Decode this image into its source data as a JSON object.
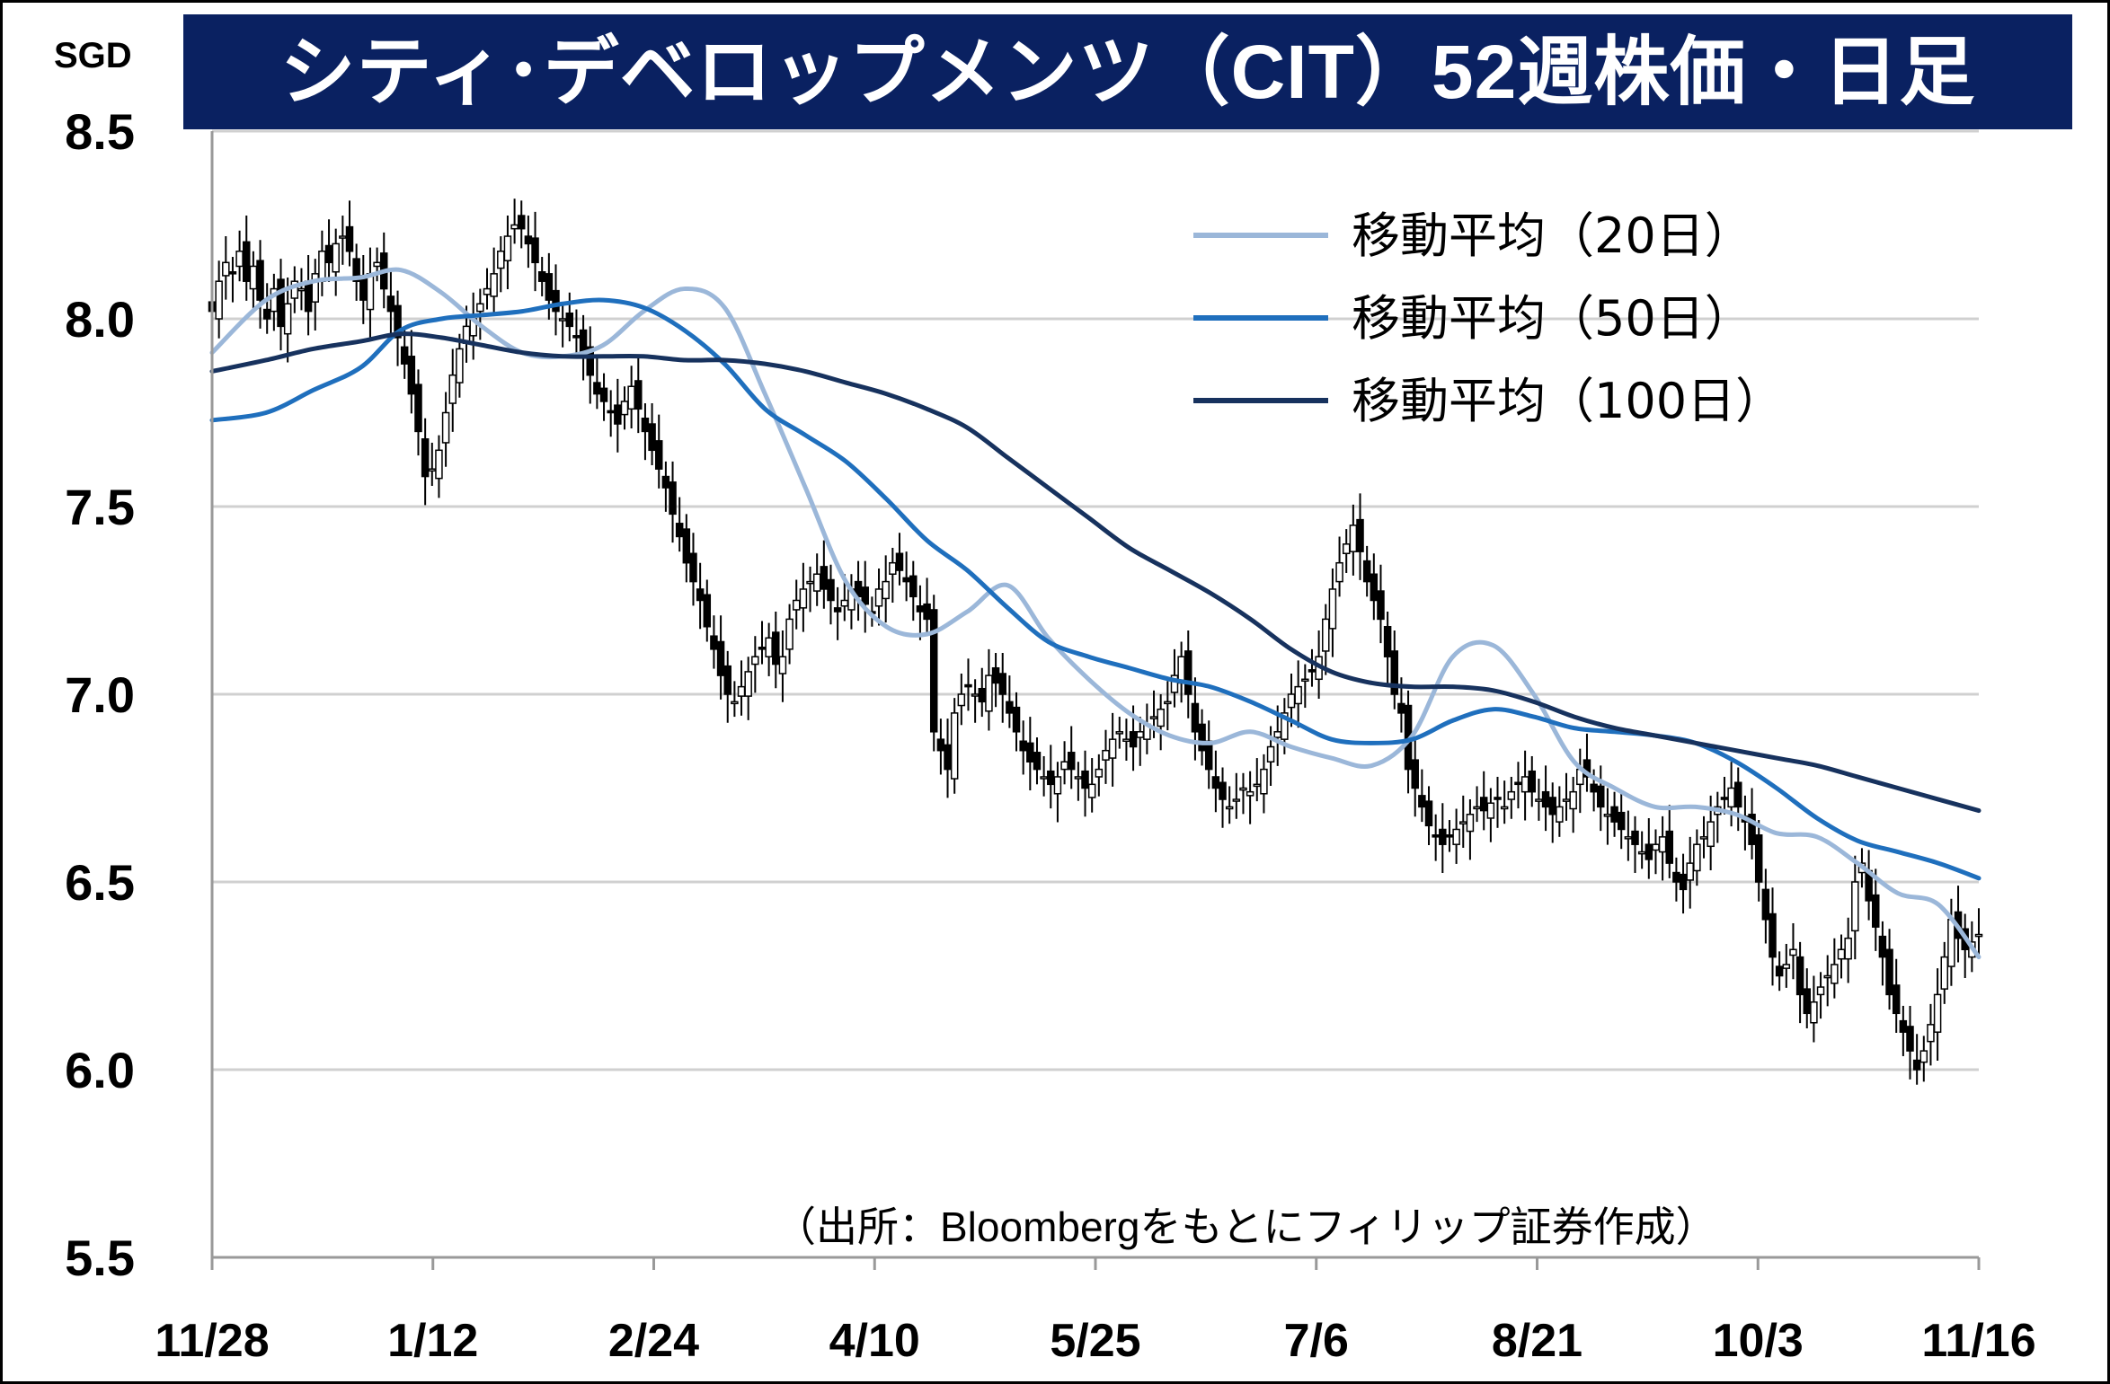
{
  "title": "シティ･デベロップメンツ（CIT）52週株価・日足",
  "unit_label": "SGD",
  "source_note": "（出所：Bloombergをもとにフィリップ証券作成）",
  "colors": {
    "title_bg": "#0a2161",
    "ma20": "#9bb7d9",
    "ma50": "#1f6fbd",
    "ma100": "#17325e",
    "grid": "#d0d0d0",
    "candle": "#000000"
  },
  "chart_data": {
    "type": "line",
    "ylim": [
      5.5,
      8.5
    ],
    "yticks": [
      "8.5",
      "8.0",
      "7.5",
      "7.0",
      "6.5",
      "6.0",
      "5.5"
    ],
    "ytick_values": [
      8.5,
      8.0,
      7.5,
      7.0,
      6.5,
      6.0,
      5.5
    ],
    "xticks": [
      "11/28",
      "1/12",
      "2/24",
      "4/10",
      "5/25",
      "7/6",
      "8/21",
      "10/3",
      "11/16"
    ],
    "grid": true,
    "legend_position": "top-right",
    "series": [
      {
        "name": "移動平均（20日）",
        "color": "#9bb7d9",
        "x": [
          0,
          8,
          15,
          22,
          28,
          34,
          40,
          46,
          52,
          58,
          64,
          70,
          76,
          82,
          88,
          94,
          100,
          106,
          112,
          118,
          124,
          130,
          136,
          142,
          148,
          154,
          160,
          166,
          172,
          178,
          184,
          190,
          196,
          202,
          208,
          214,
          220,
          226,
          232,
          238,
          244,
          250,
          256,
          262
        ],
        "values": [
          7.91,
          8.05,
          8.1,
          8.11,
          8.13,
          8.07,
          7.98,
          7.91,
          7.9,
          7.93,
          8.02,
          8.08,
          8.03,
          7.8,
          7.55,
          7.3,
          7.18,
          7.16,
          7.22,
          7.29,
          7.15,
          7.04,
          6.95,
          6.89,
          6.87,
          6.9,
          6.86,
          6.83,
          6.81,
          6.89,
          7.1,
          7.13,
          7.0,
          6.82,
          6.75,
          6.7,
          6.7,
          6.68,
          6.63,
          6.62,
          6.55,
          6.47,
          6.44,
          6.3
        ]
      },
      {
        "name": "移動平均（50日）",
        "color": "#1f6fbd",
        "x": [
          0,
          8,
          15,
          22,
          28,
          34,
          40,
          46,
          52,
          58,
          64,
          70,
          76,
          82,
          88,
          94,
          100,
          106,
          112,
          118,
          124,
          130,
          136,
          142,
          148,
          154,
          160,
          166,
          172,
          178,
          184,
          190,
          196,
          202,
          208,
          214,
          220,
          226,
          232,
          238,
          244,
          250,
          256,
          262
        ],
        "values": [
          7.73,
          7.75,
          7.81,
          7.87,
          7.97,
          8.0,
          8.01,
          8.02,
          8.04,
          8.05,
          8.03,
          7.97,
          7.88,
          7.76,
          7.69,
          7.62,
          7.52,
          7.41,
          7.33,
          7.23,
          7.14,
          7.1,
          7.07,
          7.04,
          7.02,
          6.98,
          6.93,
          6.88,
          6.87,
          6.88,
          6.93,
          6.96,
          6.94,
          6.91,
          6.9,
          6.89,
          6.87,
          6.82,
          6.75,
          6.67,
          6.61,
          6.58,
          6.55,
          6.51
        ]
      },
      {
        "name": "移動平均（100日）",
        "color": "#17325e",
        "x": [
          0,
          8,
          15,
          22,
          28,
          34,
          40,
          46,
          52,
          58,
          64,
          70,
          76,
          82,
          88,
          94,
          100,
          106,
          112,
          118,
          124,
          130,
          136,
          142,
          148,
          154,
          160,
          166,
          172,
          178,
          184,
          190,
          196,
          202,
          208,
          214,
          220,
          226,
          232,
          238,
          244,
          250,
          256,
          262
        ],
        "values": [
          7.86,
          7.89,
          7.92,
          7.94,
          7.96,
          7.95,
          7.93,
          7.91,
          7.9,
          7.9,
          7.9,
          7.89,
          7.89,
          7.88,
          7.86,
          7.83,
          7.8,
          7.76,
          7.71,
          7.63,
          7.55,
          7.47,
          7.39,
          7.33,
          7.27,
          7.2,
          7.12,
          7.06,
          7.03,
          7.02,
          7.02,
          7.01,
          6.98,
          6.94,
          6.91,
          6.89,
          6.87,
          6.85,
          6.83,
          6.81,
          6.78,
          6.75,
          6.72,
          6.69
        ]
      }
    ],
    "candles": {
      "note": "daily OHLC, index 0..262",
      "close": [
        8.02,
        8.1,
        8.15,
        8.12,
        8.18,
        8.1,
        8.14,
        8.05,
        8.0,
        8.08,
        7.98,
        8.04,
        8.1,
        8.08,
        8.02,
        8.12,
        8.18,
        8.15,
        8.2,
        8.22,
        8.18,
        8.1,
        8.05,
        8.12,
        8.15,
        8.08,
        8.02,
        7.95,
        7.88,
        7.8,
        7.7,
        7.58,
        7.6,
        7.65,
        7.75,
        7.85,
        7.92,
        7.98,
        8.0,
        8.04,
        8.08,
        8.12,
        8.18,
        8.22,
        8.25,
        8.24,
        8.2,
        8.15,
        8.1,
        8.05,
        8.02,
        8.0,
        7.98,
        7.95,
        7.9,
        7.85,
        7.8,
        7.78,
        7.75,
        7.72,
        7.78,
        7.82,
        7.76,
        7.7,
        7.65,
        7.6,
        7.55,
        7.48,
        7.42,
        7.35,
        7.3,
        7.25,
        7.18,
        7.12,
        7.05,
        7.0,
        6.98,
        7.02,
        7.06,
        7.1,
        7.12,
        7.15,
        7.08,
        7.1,
        7.2,
        7.25,
        7.28,
        7.3,
        7.32,
        7.28,
        7.25,
        7.22,
        7.25,
        7.28,
        7.26,
        7.24,
        7.22,
        7.28,
        7.3,
        7.35,
        7.33,
        7.3,
        7.26,
        7.22,
        7.2,
        6.9,
        6.85,
        6.8,
        6.95,
        7.0,
        7.02,
        7.0,
        6.98,
        7.05,
        7.03,
        7.0,
        6.95,
        6.9,
        6.85,
        6.82,
        6.8,
        6.78,
        6.76,
        6.78,
        6.82,
        6.8,
        6.78,
        6.75,
        6.76,
        6.8,
        6.85,
        6.88,
        6.9,
        6.88,
        6.86,
        6.9,
        6.92,
        6.94,
        6.96,
        6.98,
        7.05,
        7.1,
        7.0,
        6.9,
        6.85,
        6.8,
        6.75,
        6.72,
        6.7,
        6.72,
        6.75,
        6.74,
        6.76,
        6.8,
        6.86,
        6.9,
        6.95,
        7.0,
        7.02,
        7.04,
        7.06,
        7.1,
        7.2,
        7.28,
        7.35,
        7.4,
        7.45,
        7.38,
        7.3,
        7.25,
        7.2,
        7.1,
        7.0,
        6.95,
        6.8,
        6.75,
        6.7,
        6.65,
        6.62,
        6.6,
        6.62,
        6.64,
        6.66,
        6.68,
        6.7,
        6.69,
        6.71,
        6.72,
        6.7,
        6.74,
        6.76,
        6.78,
        6.74,
        6.72,
        6.7,
        6.68,
        6.7,
        6.72,
        6.74,
        6.8,
        6.78,
        6.74,
        6.7,
        6.68,
        6.66,
        6.64,
        6.62,
        6.6,
        6.58,
        6.56,
        6.6,
        6.62,
        6.55,
        6.5,
        6.48,
        6.55,
        6.6,
        6.62,
        6.66,
        6.7,
        6.72,
        6.75,
        6.7,
        6.66,
        6.6,
        6.5,
        6.4,
        6.3,
        6.25,
        6.28,
        6.32,
        6.2,
        6.15,
        6.18,
        6.22,
        6.25,
        6.28,
        6.32,
        6.35,
        6.5,
        6.55,
        6.45,
        6.38,
        6.3,
        6.2,
        6.15,
        6.1,
        6.05,
        6.0,
        6.05,
        6.12,
        6.2,
        6.3,
        6.4,
        6.35,
        6.32,
        6.34,
        6.36
      ],
      "open_offset": [
        0.05,
        -0.04,
        0.03,
        -0.05,
        0.04
      ]
    }
  },
  "legend": [
    {
      "label": "移動平均（20日）",
      "color": "#9bb7d9"
    },
    {
      "label": "移動平均（50日）",
      "color": "#1f6fbd"
    },
    {
      "label": "移動平均（100日）",
      "color": "#17325e"
    }
  ]
}
